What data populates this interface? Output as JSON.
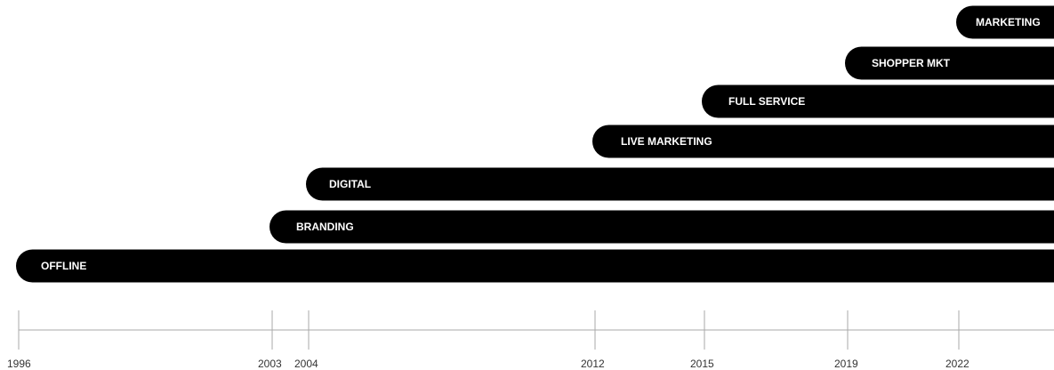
{
  "chart_data": {
    "type": "bar",
    "orientation": "horizontal-timeline",
    "x_ticks": [
      1996,
      2003,
      2004,
      2012,
      2015,
      2019,
      2022
    ],
    "series": [
      {
        "label": "MARKETING",
        "start": 2022
      },
      {
        "label": "SHOPPER MKT",
        "start": 2019
      },
      {
        "label": "FULL SERVICE",
        "start": 2015
      },
      {
        "label": "LIVE MARKETING",
        "start": 2012
      },
      {
        "label": "DIGITAL",
        "start": 2004
      },
      {
        "label": "BRANDING",
        "start": 2003
      },
      {
        "label": "OFFLINE",
        "start": 1996
      }
    ],
    "grid": false,
    "legend": "none"
  },
  "colors": {
    "bar": "#000000",
    "bar_text": "#ffffff",
    "axis": "#aaaaaa",
    "tick_text": "#333333"
  }
}
